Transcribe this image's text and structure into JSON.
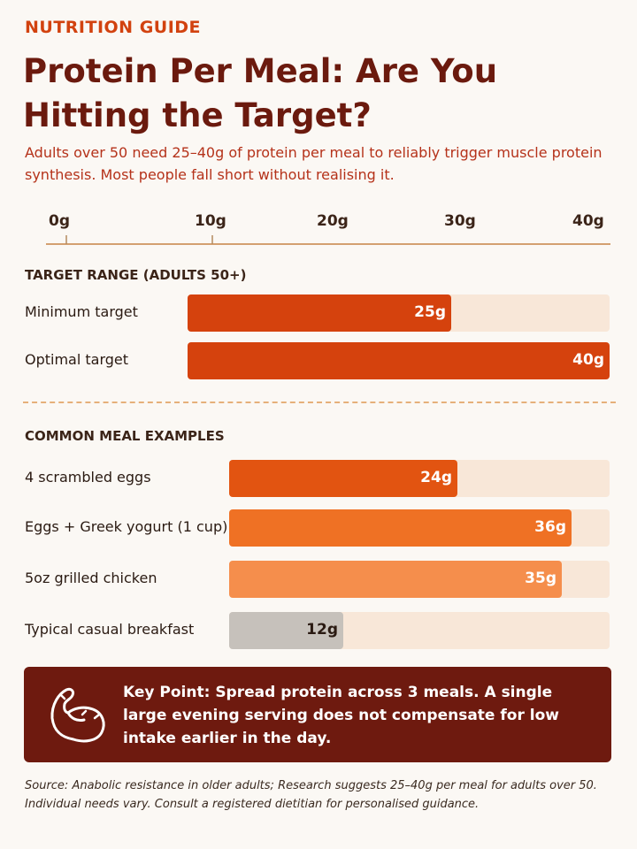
{
  "header": {
    "eyebrow": "NUTRITION GUIDE",
    "title": "Protein Per Meal: Are You Hitting the Target?",
    "subtitle": "Adults over 50 need 25–40g of protein per meal to reliably trigger muscle protein synthesis. Most people fall short without realising it."
  },
  "chart_data": {
    "type": "bar",
    "orientation": "horizontal",
    "xlim": [
      0,
      40
    ],
    "unit": "g",
    "ticks": [
      "0g",
      "10g",
      "20g",
      "30g",
      "40g"
    ],
    "groups": [
      {
        "label": "TARGET RANGE (ADULTS 50+)",
        "items": [
          {
            "label": "Minimum target",
            "value": 25,
            "value_label": "25g",
            "color": "#d5420d"
          },
          {
            "label": "Optimal target",
            "value": 40,
            "value_label": "40g",
            "color": "#d5420d"
          }
        ]
      },
      {
        "label": "COMMON MEAL EXAMPLES",
        "items": [
          {
            "label": "4 scrambled eggs",
            "value": 24,
            "value_label": "24g",
            "color": "#e25411"
          },
          {
            "label": "Eggs + Greek yogurt (1 cup)",
            "value": 36,
            "value_label": "36g",
            "color": "#ef7124"
          },
          {
            "label": "5oz grilled chicken",
            "value": 35,
            "value_label": "35g",
            "color": "#f58e4c"
          },
          {
            "label": "Typical casual breakfast",
            "value": 12,
            "value_label": "12g",
            "color": "#c6c1bb"
          }
        ]
      }
    ]
  },
  "callout": {
    "icon": "flexed-biceps-icon",
    "text": "Key Point: Spread protein across 3 meals. A single large evening serving does not compensate for low intake earlier in the day."
  },
  "source": "Source: Anabolic resistance in older adults; Research suggests 25–40g per meal for adults over 50. Individual needs vary. Consult a registered dietitian for personalised guidance."
}
